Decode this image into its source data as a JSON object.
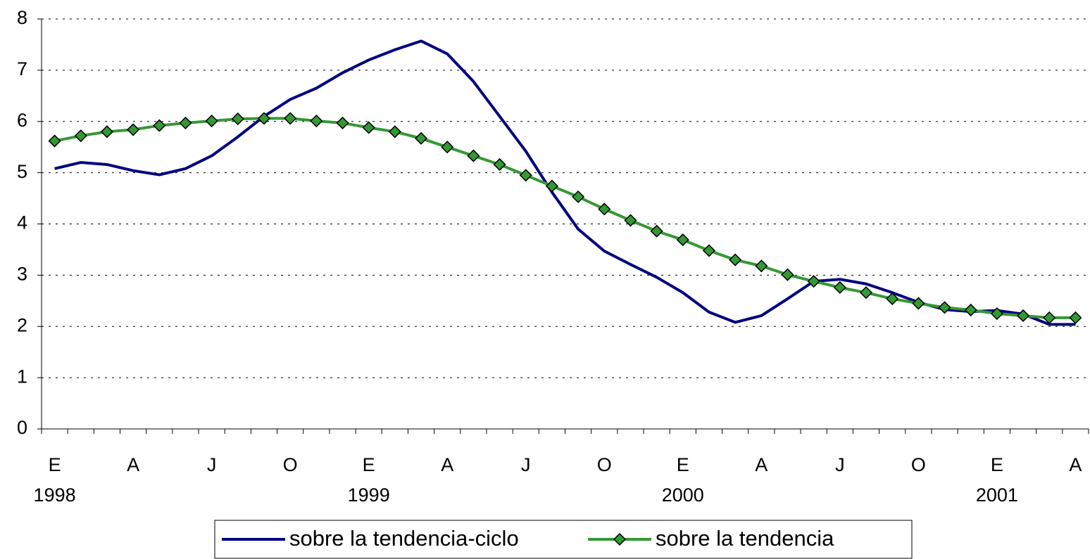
{
  "chart_data": {
    "type": "line",
    "categories": [
      "E",
      null,
      null,
      "A",
      null,
      null,
      "J",
      null,
      null,
      "O",
      null,
      null,
      "E",
      null,
      null,
      "A",
      null,
      null,
      "J",
      null,
      null,
      "O",
      null,
      null,
      "E",
      null,
      null,
      "A",
      null,
      null,
      "J",
      null,
      null,
      "O",
      null,
      null,
      "E",
      null,
      null,
      "A"
    ],
    "year_labels": [
      "1998",
      null,
      null,
      null,
      null,
      null,
      null,
      null,
      null,
      null,
      null,
      null,
      "1999",
      null,
      null,
      null,
      null,
      null,
      null,
      null,
      null,
      null,
      null,
      null,
      "2000",
      null,
      null,
      null,
      null,
      null,
      null,
      null,
      null,
      null,
      null,
      null,
      "2001",
      null,
      null,
      null
    ],
    "series": [
      {
        "name": "sobre la tendencia-ciclo",
        "color": "#000080",
        "values": [
          5.08,
          5.2,
          5.16,
          5.04,
          4.96,
          5.08,
          5.33,
          5.7,
          6.1,
          6.43,
          6.65,
          6.95,
          7.2,
          7.4,
          7.57,
          7.32,
          6.78,
          6.1,
          5.42,
          4.62,
          3.9,
          3.47,
          3.21,
          2.96,
          2.66,
          2.28,
          2.08,
          2.21,
          2.54,
          2.88,
          2.92,
          2.83,
          2.66,
          2.47,
          2.33,
          2.29,
          2.31,
          2.24,
          2.04,
          2.04
        ]
      },
      {
        "name": "sobre la tendencia",
        "color": "#339933",
        "marker": "diamond",
        "values": [
          5.62,
          5.72,
          5.8,
          5.84,
          5.92,
          5.97,
          6.01,
          6.05,
          6.06,
          6.06,
          6.01,
          5.97,
          5.88,
          5.8,
          5.67,
          5.5,
          5.33,
          5.16,
          4.95,
          4.74,
          4.53,
          4.29,
          4.07,
          3.86,
          3.69,
          3.48,
          3.3,
          3.18,
          3.01,
          2.88,
          2.76,
          2.66,
          2.54,
          2.45,
          2.37,
          2.32,
          2.25,
          2.21,
          2.17,
          2.17
        ]
      }
    ],
    "ylim": [
      0,
      8
    ],
    "yticks": [
      0,
      1,
      2,
      3,
      4,
      5,
      6,
      7,
      8
    ],
    "grid": true,
    "legend": "bottom"
  }
}
